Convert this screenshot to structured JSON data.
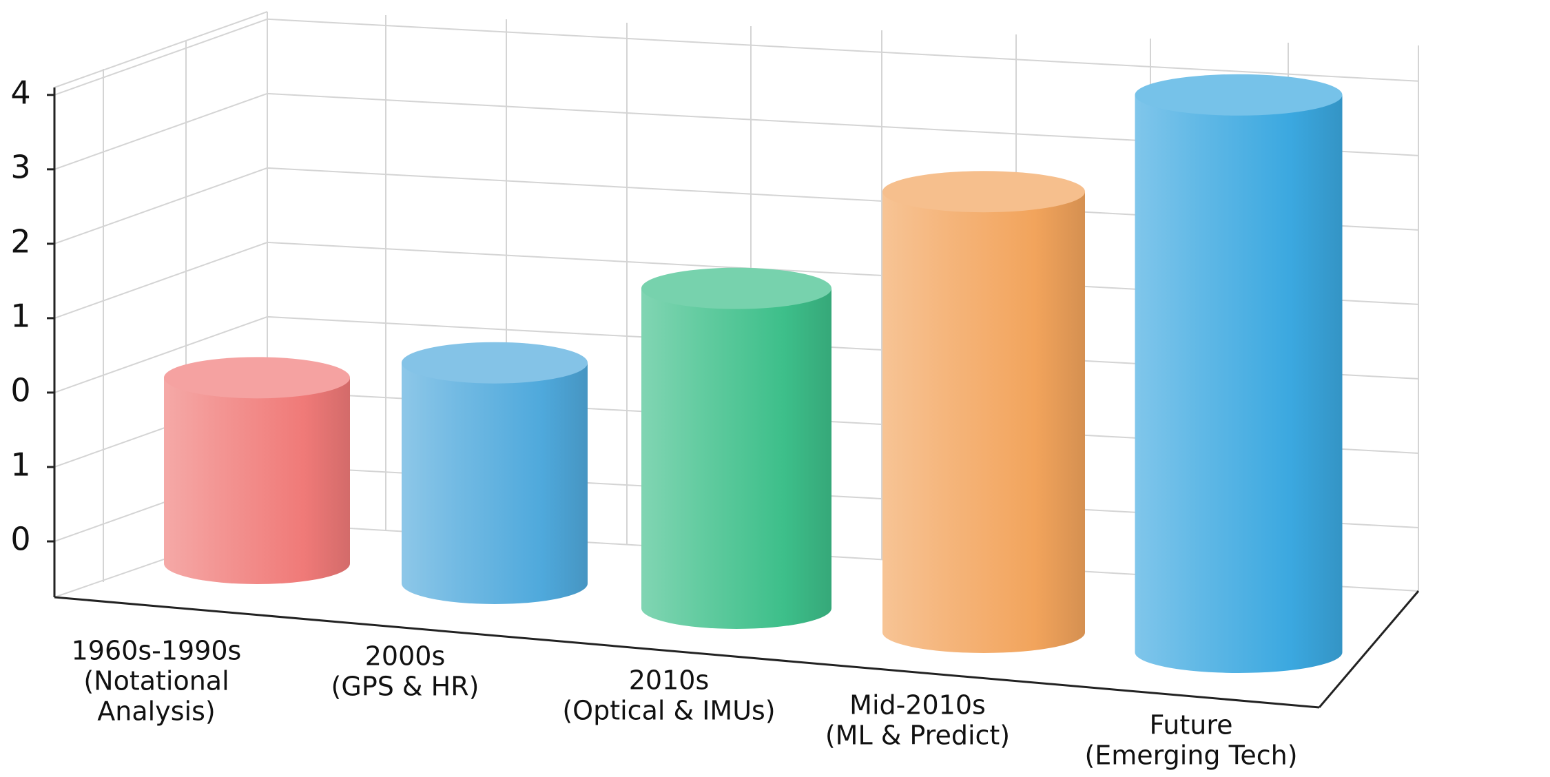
{
  "chart_data": {
    "type": "cylinder-bar",
    "categories": [
      [
        "1960s-1990s",
        "(Notational",
        "Analysis)"
      ],
      [
        "2000s",
        "(GPS & HR)"
      ],
      [
        "2010s",
        "(Optical & IMUs)"
      ],
      [
        "Mid-2010s",
        "(ML & Predict)"
      ],
      [
        "Future",
        "(Emerging Tech)"
      ]
    ],
    "values": [
      2.2,
      2.4,
      3.4,
      4.7,
      6.0
    ],
    "colors": [
      "#f07a78",
      "#4fa9dc",
      "#3dbf8a",
      "#f2a45c",
      "#3ba8e0"
    ],
    "ylim": [
      -0.75,
      6.1
    ],
    "yticks": [
      0,
      1,
      {
        "value": 2,
        "label": "0"
      },
      {
        "value": 3,
        "label": "1"
      },
      {
        "value": 4,
        "label": "2"
      },
      {
        "value": 5,
        "label": "3"
      },
      {
        "value": 6,
        "label": "4"
      }
    ],
    "grid": true
  }
}
